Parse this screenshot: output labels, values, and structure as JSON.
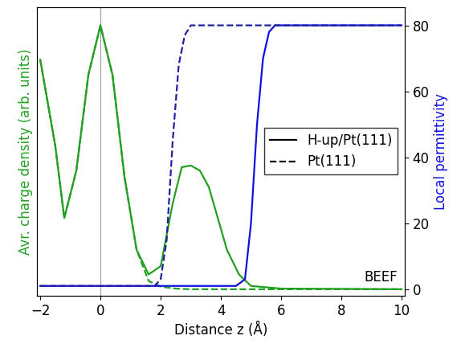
{
  "chart_data": {
    "type": "line",
    "x_label": "Distance z (Å)",
    "y_label": "Avr. charge density (arb. units)",
    "y2_label": "Local permittivity",
    "xlim": [
      -2.1,
      10.1
    ],
    "xticks": [
      {
        "value": -2,
        "label": "−2"
      },
      0,
      2,
      4,
      6,
      8,
      10
    ],
    "ylim": [
      -2,
      85.6
    ],
    "yticks": [],
    "y2lim": [
      -2,
      85.6
    ],
    "y2ticks": [
      0,
      20,
      40,
      60,
      80
    ],
    "vlines": [
      0
    ],
    "annotations": [
      "BEEF"
    ],
    "legend": "center right",
    "legend_entries": [
      {
        "name": "H-up/Pt(111)",
        "line_style": "solid"
      },
      {
        "name": "Pt(111)",
        "line_style": "dashed"
      }
    ],
    "series": [
      {
        "name": "H-up/Pt(111)",
        "quantity": "charge density",
        "color": "#22a022",
        "line_style": "solid",
        "x": [
          -2,
          -1.5,
          -1.2,
          -0.8,
          -0.4,
          0,
          0.4,
          0.8,
          1.2,
          1.6,
          2.0,
          2.4,
          2.7,
          3.0,
          3.3,
          3.6,
          3.9,
          4.2,
          4.6,
          5.0,
          6.0,
          10
        ],
        "values": [
          69.6,
          43.5,
          21.6,
          36,
          65,
          80,
          65,
          34,
          12,
          4.5,
          7,
          26,
          37,
          37.5,
          36,
          31,
          21.5,
          12,
          4.5,
          1,
          0.2,
          0
        ]
      },
      {
        "name": "Pt(111)",
        "quantity": "charge density",
        "color": "#22a022",
        "line_style": "dashed",
        "x": [
          -2,
          -1.5,
          -1.2,
          -0.8,
          -0.4,
          0,
          0.4,
          0.8,
          1.2,
          1.6,
          2.0,
          2.5,
          3.0,
          10
        ],
        "values": [
          69.6,
          43.5,
          21.6,
          36,
          65,
          80,
          65,
          34,
          12,
          2.5,
          0.8,
          0.2,
          0,
          0
        ]
      },
      {
        "name": "H-up/Pt(111)",
        "quantity": "permittivity",
        "axis": "y2",
        "color": "#1010e0",
        "line_style": "solid",
        "x": [
          -2,
          4.5,
          4.8,
          5.0,
          5.2,
          5.4,
          5.6,
          5.8,
          10
        ],
        "values": [
          1,
          1,
          3,
          20,
          50,
          70,
          78,
          80,
          80
        ]
      },
      {
        "name": "Pt(111)",
        "quantity": "permittivity",
        "axis": "y2",
        "color": "#2020a0",
        "line_style": "dashed",
        "x": [
          -2,
          1.8,
          2.0,
          2.2,
          2.4,
          2.6,
          2.8,
          3.0,
          10
        ],
        "values": [
          1,
          1,
          3,
          15,
          45,
          68,
          77,
          80,
          80
        ]
      }
    ]
  }
}
